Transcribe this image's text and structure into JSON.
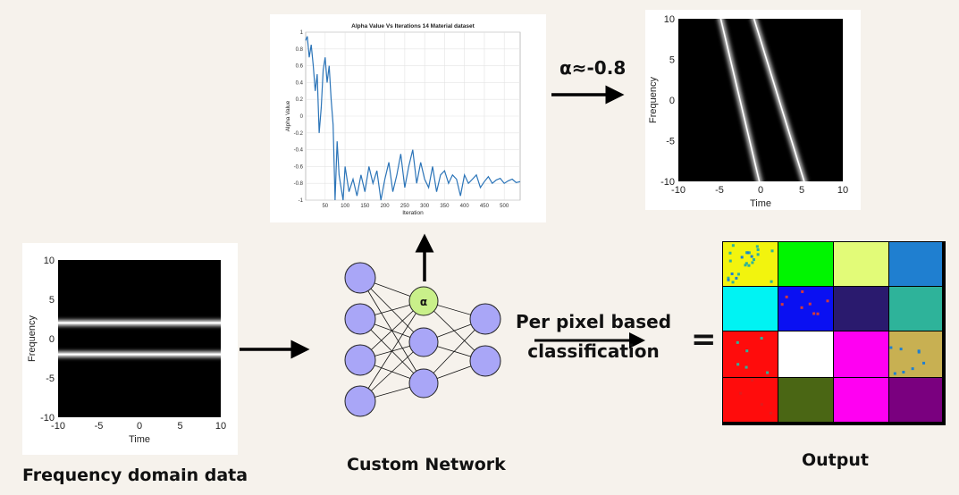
{
  "labels": {
    "alpha_annotation": "α≈-0.8",
    "classification": "Per pixel based classification",
    "equals": "=",
    "input_caption": "Frequency domain data",
    "network_caption": "Custom Network",
    "output_caption": "Output",
    "alpha_node": "α"
  },
  "chart_data": [
    {
      "type": "line",
      "title": "Alpha Value Vs Iterations 14 Material dataset",
      "xlabel": "Iteration",
      "ylabel": "Alpha Value",
      "xlim": [
        1,
        540
      ],
      "ylim": [
        -1,
        1
      ],
      "xticks": [
        50,
        100,
        150,
        200,
        250,
        300,
        350,
        400,
        450,
        500
      ],
      "yticks": [
        -1,
        -0.8,
        -0.6,
        -0.4,
        -0.2,
        0,
        0.2,
        0.4,
        0.6,
        0.8,
        1
      ],
      "grid": true,
      "color": "#2b74b8",
      "series": [
        {
          "x": [
            1,
            5,
            10,
            15,
            20,
            25,
            30,
            35,
            40,
            45,
            50,
            55,
            60,
            65,
            70,
            75,
            80,
            85,
            90,
            95,
            100,
            110,
            120,
            130,
            140,
            150,
            160,
            170,
            180,
            190,
            200,
            210,
            220,
            230,
            240,
            250,
            260,
            270,
            280,
            290,
            300,
            310,
            320,
            330,
            340,
            350,
            360,
            370,
            380,
            390,
            400,
            410,
            420,
            430,
            440,
            450,
            460,
            470,
            480,
            490,
            500,
            510,
            520,
            530,
            540
          ],
          "y": [
            0.9,
            0.95,
            0.7,
            0.85,
            0.6,
            0.3,
            0.5,
            -0.2,
            0.1,
            0.55,
            0.7,
            0.4,
            0.6,
            0.2,
            -0.1,
            -1,
            -0.3,
            -0.7,
            -0.85,
            -1,
            -0.6,
            -0.9,
            -0.75,
            -0.95,
            -0.7,
            -0.9,
            -0.6,
            -0.8,
            -0.65,
            -1,
            -0.75,
            -0.55,
            -0.9,
            -0.7,
            -0.45,
            -0.85,
            -0.6,
            -0.4,
            -0.8,
            -0.55,
            -0.75,
            -0.85,
            -0.6,
            -0.9,
            -0.7,
            -0.65,
            -0.8,
            -0.7,
            -0.75,
            -0.95,
            -0.7,
            -0.8,
            -0.75,
            -0.7,
            -0.85,
            -0.78,
            -0.72,
            -0.8,
            -0.76,
            -0.74,
            -0.8,
            -0.77,
            -0.75,
            -0.79,
            -0.78
          ]
        }
      ]
    },
    {
      "type": "heatmap",
      "ylabel": "Frequency",
      "xlabel": "Time",
      "xlim": [
        -10,
        10
      ],
      "ylim": [
        -10,
        10
      ],
      "xticks": [
        -10,
        -5,
        0,
        5,
        10
      ],
      "yticks": [
        10,
        5,
        0,
        -5,
        -10
      ],
      "lines": [
        {
          "from": [
            -5,
            10
          ],
          "to": [
            0,
            -10
          ]
        },
        {
          "from": [
            -1,
            10
          ],
          "to": [
            5.5,
            -10
          ]
        }
      ]
    },
    {
      "type": "heatmap",
      "ylabel": "Frequency",
      "xlabel": "Time",
      "xlim": [
        -10,
        10
      ],
      "ylim": [
        -10,
        10
      ],
      "xticks": [
        -10,
        -5,
        0,
        5,
        10
      ],
      "yticks": [
        10,
        5,
        0,
        -5,
        -10
      ],
      "bands": [
        2,
        -2
      ]
    }
  ],
  "network": {
    "input_nodes": 4,
    "hidden_nodes": 3,
    "output_nodes": 2,
    "node_color": "#a9a6f7",
    "alpha_color": "#c9f08a"
  },
  "output_grid": {
    "rows": [
      [
        "#f2f40e",
        "#00f500",
        "#e2fb78",
        "#1f7fd0"
      ],
      [
        "#00f3f3",
        "#0a10f2",
        "#2a1a6e",
        "#2eb39a"
      ],
      [
        "#ff0c0c",
        "#ffffff",
        "#ff00f2",
        "#c8b052"
      ],
      [
        "#ff0c0c",
        "#4a6614",
        "#ff00f2",
        "#7a007f"
      ]
    ]
  }
}
